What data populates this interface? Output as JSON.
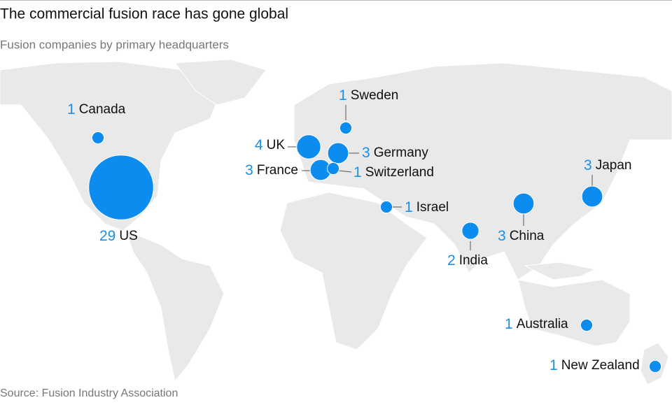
{
  "title": "The commercial fusion race has gone global",
  "subtitle": "Fusion companies by primary headquarters",
  "source": "Source: Fusion Industry Association",
  "locations": [
    {
      "name": "Canada",
      "value": 1
    },
    {
      "name": "US",
      "value": 29
    },
    {
      "name": "Sweden",
      "value": 1
    },
    {
      "name": "UK",
      "value": 4
    },
    {
      "name": "Germany",
      "value": 3
    },
    {
      "name": "France",
      "value": 3
    },
    {
      "name": "Switzerland",
      "value": 1
    },
    {
      "name": "Israel",
      "value": 1
    },
    {
      "name": "India",
      "value": 2
    },
    {
      "name": "China",
      "value": 3
    },
    {
      "name": "Japan",
      "value": 3
    },
    {
      "name": "Australia",
      "value": 1
    },
    {
      "name": "New Zealand",
      "value": 1
    }
  ]
}
